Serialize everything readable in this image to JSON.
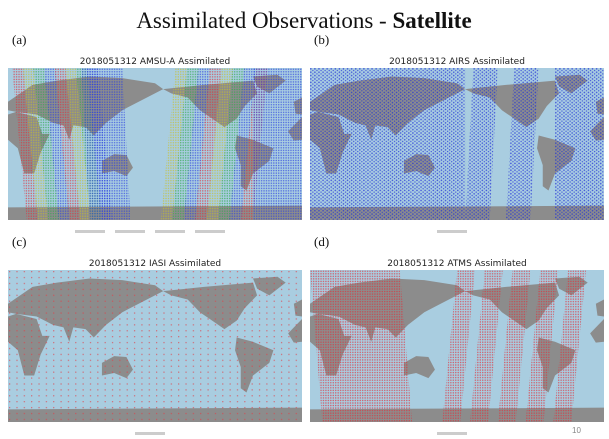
{
  "title": {
    "main": "Assimilated Observations -",
    "emphasis": "Satellite"
  },
  "panels": [
    {
      "label": "(a)",
      "title": "2018051312  AMSU-A  Assimilated"
    },
    {
      "label": "(b)",
      "title": "2018051312  AIRS  Assimilated"
    },
    {
      "label": "(c)",
      "title": "2018051312  IASI  Assimilated"
    },
    {
      "label": "(d)",
      "title": "2018051312  ATMS  Assimilated"
    }
  ],
  "page_number": "10"
}
